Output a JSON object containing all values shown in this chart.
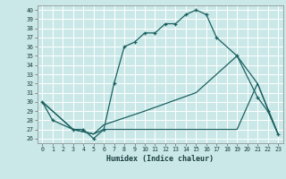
{
  "xlabel": "Humidex (Indice chaleur)",
  "bg_color": "#cbe8e8",
  "grid_color": "#ffffff",
  "line_color": "#1a6060",
  "xlim": [
    -0.5,
    23.5
  ],
  "ylim": [
    25.5,
    40.5
  ],
  "xticks": [
    0,
    1,
    2,
    3,
    4,
    5,
    6,
    7,
    8,
    9,
    10,
    11,
    12,
    13,
    14,
    15,
    16,
    17,
    18,
    19,
    20,
    21,
    22,
    23
  ],
  "yticks": [
    26,
    27,
    28,
    29,
    30,
    31,
    32,
    33,
    34,
    35,
    36,
    37,
    38,
    39,
    40
  ],
  "line1_x": [
    0,
    1,
    3,
    4,
    5,
    6,
    7,
    8,
    9,
    10,
    11,
    12,
    13,
    14,
    15,
    16,
    17,
    19,
    21,
    22,
    23
  ],
  "line1_y": [
    30,
    28,
    27,
    27,
    26,
    27,
    32,
    36,
    36.5,
    37.5,
    37.5,
    38.5,
    38.5,
    39.5,
    40,
    39.5,
    37,
    35,
    30.5,
    29,
    26.5
  ],
  "line2_x": [
    0,
    3,
    5,
    6,
    10,
    15,
    19,
    21,
    23
  ],
  "line2_y": [
    30,
    27,
    26.5,
    27,
    27,
    27,
    27,
    32,
    26.5
  ],
  "line3_x": [
    0,
    3,
    5,
    6,
    10,
    15,
    19,
    21,
    23
  ],
  "line3_y": [
    30,
    27,
    26.5,
    27.5,
    29,
    31,
    35,
    32,
    26.5
  ]
}
